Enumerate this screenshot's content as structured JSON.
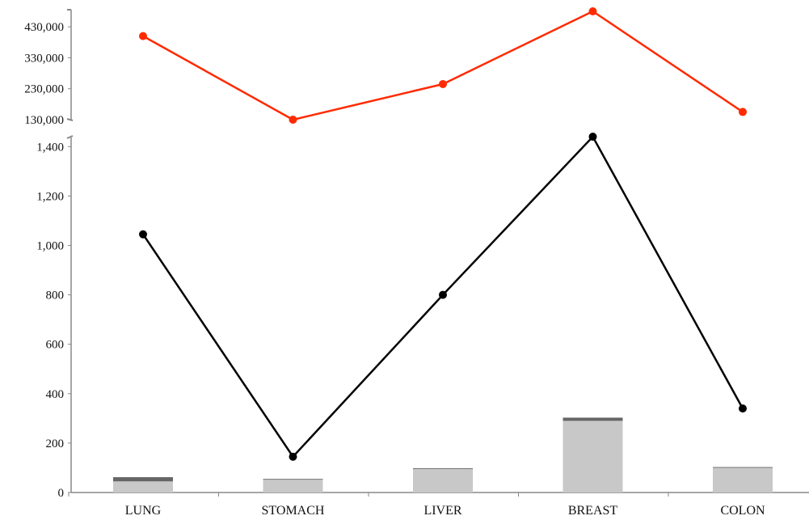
{
  "chart_data": {
    "type": "bar",
    "categories": [
      "LUNG",
      "STOMACH",
      "LIVER",
      "BREAST",
      "COLON"
    ],
    "top_panel": {
      "type": "line",
      "ylim": [
        130000,
        480000
      ],
      "yticks": [
        130000,
        230000,
        330000,
        430000
      ],
      "ytick_labels": [
        "130,000",
        "230,000",
        "330,000",
        "430,000"
      ],
      "series": [
        {
          "values": [
            400000,
            130000,
            245000,
            480000,
            155000
          ],
          "color": "#ff2a00"
        }
      ]
    },
    "bottom_panel": {
      "ylim": [
        0,
        1450
      ],
      "yticks": [
        0,
        200,
        400,
        600,
        800,
        1000,
        1200,
        1400
      ],
      "ytick_labels": [
        "0",
        "200",
        "400",
        "600",
        "800",
        "1,000",
        "1,200",
        "1,400"
      ],
      "line_series": [
        {
          "values": [
            1045,
            145,
            800,
            1440,
            340
          ],
          "color": "#000000"
        }
      ],
      "stacked_bars": [
        {
          "values": [
            45,
            52,
            95,
            290,
            100
          ],
          "color": "#c8c8c8"
        },
        {
          "values": [
            17,
            3,
            3,
            13,
            3
          ],
          "color": "#666666"
        }
      ]
    },
    "axis_break": true
  }
}
